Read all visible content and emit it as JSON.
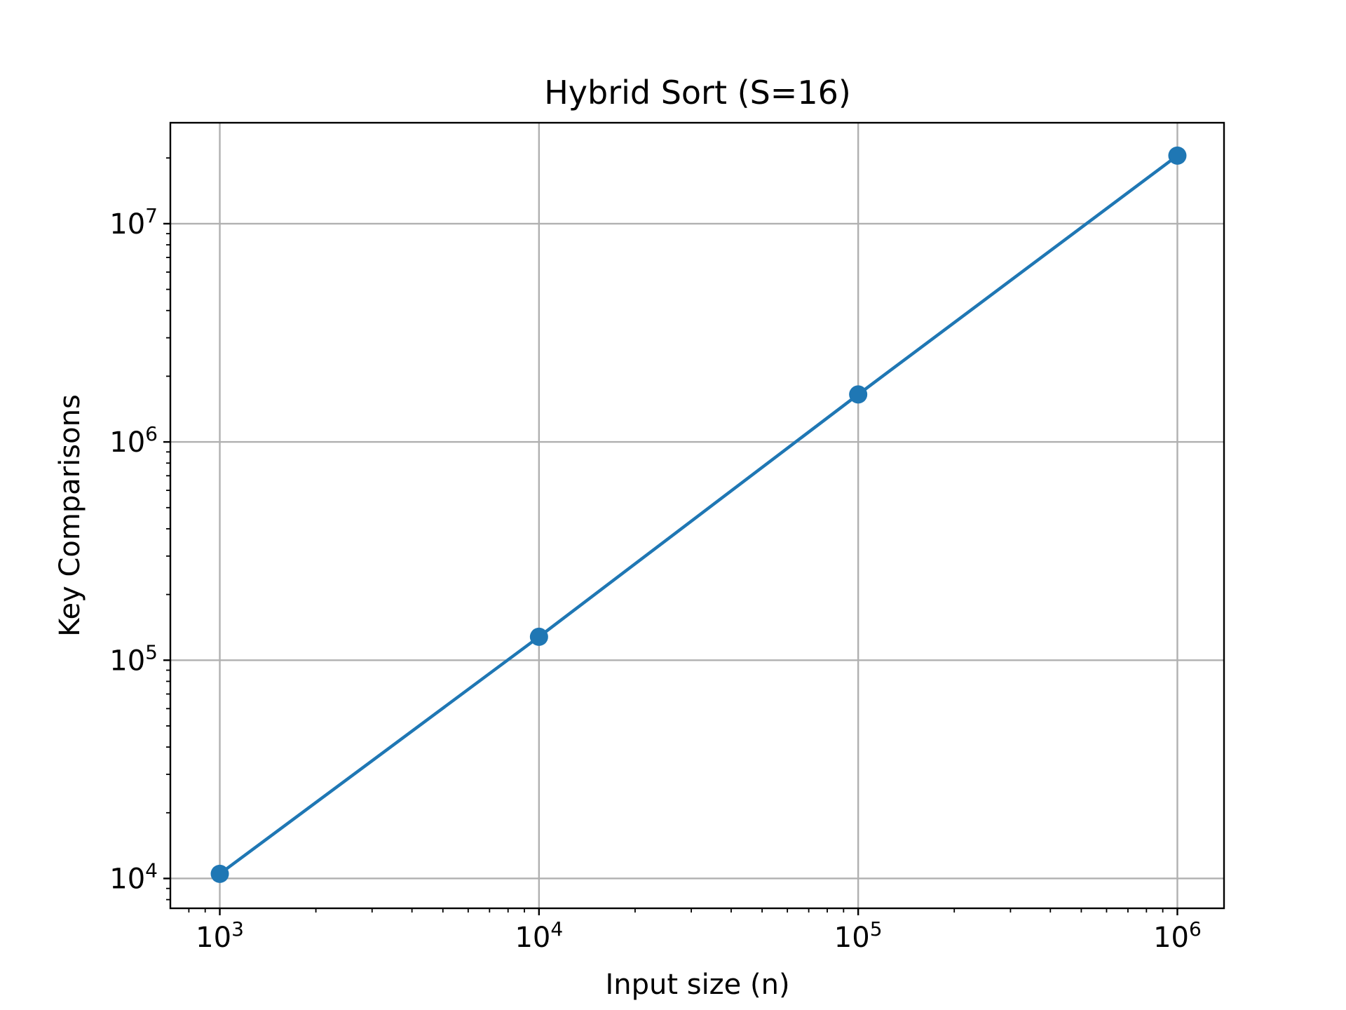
{
  "chart_data": {
    "type": "line",
    "title": "Hybrid Sort (S=16)",
    "xlabel": "Input size (n)",
    "ylabel": "Key Comparisons",
    "xscale": "log",
    "yscale": "log",
    "grid": true,
    "x": [
      1000,
      10000,
      100000,
      1000000
    ],
    "series": [
      {
        "values": [
          10500,
          128000,
          1650000,
          20500000
        ],
        "color": "#1f77b4",
        "marker": "circle"
      }
    ],
    "xlim": [
      700,
      1400000
    ],
    "ylim": [
      7300,
      29000000
    ],
    "xticks": [
      {
        "base": "10",
        "exp": "3",
        "value": 1000
      },
      {
        "base": "10",
        "exp": "4",
        "value": 10000
      },
      {
        "base": "10",
        "exp": "5",
        "value": 100000
      },
      {
        "base": "10",
        "exp": "6",
        "value": 1000000
      }
    ],
    "yticks": [
      {
        "base": "10",
        "exp": "4",
        "value": 10000
      },
      {
        "base": "10",
        "exp": "5",
        "value": 100000
      },
      {
        "base": "10",
        "exp": "6",
        "value": 1000000
      },
      {
        "base": "10",
        "exp": "7",
        "value": 10000000
      }
    ]
  }
}
